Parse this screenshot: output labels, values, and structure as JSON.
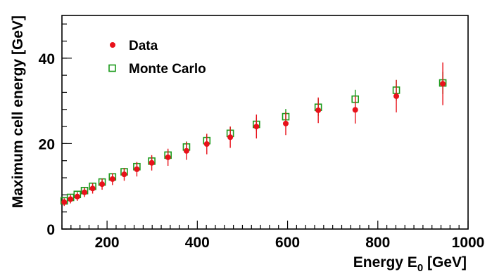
{
  "chart_data": {
    "type": "scatter",
    "xlabel": "Energy E",
    "xlabel_sub": "0",
    "xlabel_unit": " [GeV]",
    "ylabel": "Maximum cell energy [GeV]",
    "xlim": [
      100,
      1000
    ],
    "ylim": [
      0,
      50
    ],
    "xticks": [
      200,
      400,
      600,
      800,
      1000
    ],
    "yticks": [
      0,
      20,
      40
    ],
    "grid": false,
    "legend_position": "top-left",
    "series": [
      {
        "name": "Data",
        "color": "#e8111a",
        "marker": "circle",
        "points": [
          {
            "x": 105,
            "y": 6.3,
            "err": 0.9
          },
          {
            "x": 119,
            "y": 7.0,
            "err": 1.0
          },
          {
            "x": 134,
            "y": 7.6,
            "err": 1.0
          },
          {
            "x": 150,
            "y": 8.6,
            "err": 1.1
          },
          {
            "x": 168,
            "y": 9.5,
            "err": 1.2
          },
          {
            "x": 189,
            "y": 10.5,
            "err": 1.3
          },
          {
            "x": 212,
            "y": 11.7,
            "err": 1.4
          },
          {
            "x": 238,
            "y": 12.8,
            "err": 1.5
          },
          {
            "x": 266,
            "y": 14.0,
            "err": 1.7
          },
          {
            "x": 299,
            "y": 15.5,
            "err": 1.8
          },
          {
            "x": 335,
            "y": 16.8,
            "err": 2.0
          },
          {
            "x": 376,
            "y": 18.3,
            "err": 2.1
          },
          {
            "x": 421,
            "y": 19.9,
            "err": 2.4
          },
          {
            "x": 473,
            "y": 21.5,
            "err": 2.5
          },
          {
            "x": 531,
            "y": 24.0,
            "err": 2.8
          },
          {
            "x": 596,
            "y": 24.7,
            "err": 2.7
          },
          {
            "x": 668,
            "y": 27.8,
            "err": 3.0
          },
          {
            "x": 750,
            "y": 27.9,
            "err": 3.2
          },
          {
            "x": 841,
            "y": 31.1,
            "err": 3.8
          },
          {
            "x": 944,
            "y": 34.0,
            "err": 5.0
          }
        ]
      },
      {
        "name": "Monte Carlo",
        "color": "#1a9a1a",
        "marker": "open-square",
        "points": [
          {
            "x": 105,
            "y": 6.6,
            "err": 0.5
          },
          {
            "x": 119,
            "y": 7.4,
            "err": 0.5
          },
          {
            "x": 134,
            "y": 8.1,
            "err": 0.6
          },
          {
            "x": 150,
            "y": 9.0,
            "err": 0.6
          },
          {
            "x": 168,
            "y": 10.0,
            "err": 0.7
          },
          {
            "x": 189,
            "y": 11.0,
            "err": 0.8
          },
          {
            "x": 212,
            "y": 12.2,
            "err": 0.8
          },
          {
            "x": 238,
            "y": 13.4,
            "err": 0.9
          },
          {
            "x": 266,
            "y": 14.6,
            "err": 1.0
          },
          {
            "x": 299,
            "y": 15.9,
            "err": 1.1
          },
          {
            "x": 335,
            "y": 17.3,
            "err": 1.2
          },
          {
            "x": 376,
            "y": 19.2,
            "err": 1.3
          },
          {
            "x": 421,
            "y": 20.7,
            "err": 1.4
          },
          {
            "x": 473,
            "y": 22.4,
            "err": 1.5
          },
          {
            "x": 531,
            "y": 24.5,
            "err": 1.6
          },
          {
            "x": 596,
            "y": 26.3,
            "err": 1.8
          },
          {
            "x": 668,
            "y": 28.5,
            "err": 2.0
          },
          {
            "x": 750,
            "y": 30.4,
            "err": 2.2
          },
          {
            "x": 841,
            "y": 32.5,
            "err": 2.4
          },
          {
            "x": 944,
            "y": 34.2,
            "err": 2.6
          }
        ]
      }
    ]
  }
}
